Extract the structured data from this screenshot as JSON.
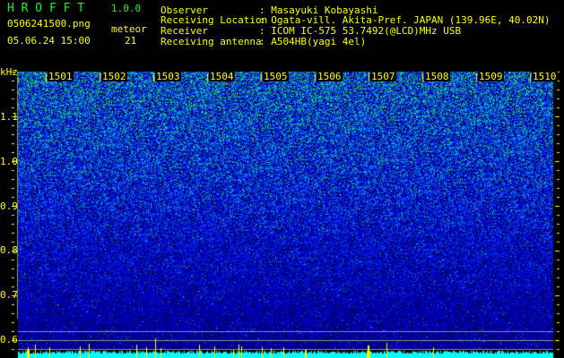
{
  "app": {
    "title": "H R O F F T",
    "version": "1.0.0"
  },
  "file": {
    "name": "0506241500.png",
    "datetime": "05.06.24 15:00"
  },
  "meteor": {
    "label": "meteor",
    "count": "21"
  },
  "info": [
    {
      "label": "Observer",
      "value": ": Masayuki Kobayashi"
    },
    {
      "label": "Receiving Location",
      "value": ": Ogata-vill. Akita-Pref. JAPAN (139.96E, 40.02N)"
    },
    {
      "label": "Receiver",
      "value": ": ICOM IC-575 53.7492(@LCD)MHz USB"
    },
    {
      "label": "Receiving antenna",
      "value": ": A504HB(yagi 4el)"
    }
  ],
  "spectrogram": {
    "y_unit": "kHz",
    "y_ticks": [
      "1.1",
      "1.0",
      "0.9",
      "0.8",
      "0.7",
      "0.6"
    ],
    "x_ticks": [
      "1501",
      "1502",
      "1503",
      "1504",
      "1505",
      "1506",
      "1507",
      "1508",
      "1509",
      "1510"
    ]
  },
  "colors": {
    "text": "#ffff00",
    "title": "#22ee22",
    "noise_low": "#0000a0",
    "noise_high": "#00ff80",
    "level": "#00ffff",
    "spike": "#ffff00"
  }
}
